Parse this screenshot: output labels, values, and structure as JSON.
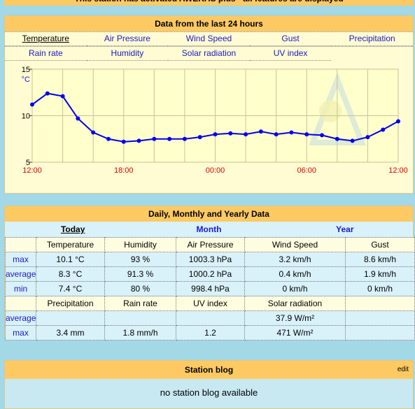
{
  "banner": "This station has activated AWEKAS plus - all features are displayed",
  "chart_panel": {
    "title": "Data from the last 24 hours",
    "tabs": [
      [
        "Temperature",
        "Air Pressure",
        "Wind Speed",
        "Gust",
        "Precipitation"
      ],
      [
        "Rain rate",
        "Humidity",
        "Solar radiation",
        "UV index"
      ]
    ]
  },
  "chart_data": {
    "type": "line",
    "y_unit": "°C",
    "color": "#0000ee",
    "grid": true,
    "categories": [
      "12:00",
      null,
      null,
      null,
      null,
      null,
      "18:00",
      null,
      null,
      null,
      null,
      null,
      "00:00",
      null,
      null,
      null,
      null,
      null,
      "06:00",
      null,
      null,
      null,
      null,
      null,
      "12:00"
    ],
    "values": [
      11.2,
      12.4,
      12.1,
      9.7,
      8.2,
      7.5,
      7.2,
      7.3,
      7.5,
      7.5,
      7.5,
      7.7,
      8.0,
      8.1,
      8.0,
      8.3,
      8.0,
      8.2,
      8.0,
      7.9,
      7.5,
      7.3,
      7.7,
      8.5,
      9.4
    ],
    "ylim": [
      5,
      15
    ],
    "yticks": [
      5,
      10,
      15
    ]
  },
  "summary": {
    "title": "Daily, Monthly and Yearly Data",
    "periods": [
      "Today",
      "Month",
      "Year"
    ],
    "table1": {
      "columns": [
        "Temperature",
        "Humidity",
        "Air Pressure",
        "Wind Speed",
        "Gust"
      ],
      "rows": [
        {
          "label": "max",
          "cells": [
            "10.1 °C",
            "93 %",
            "1003.3 hPa",
            "3.2 km/h",
            "8.6 km/h"
          ]
        },
        {
          "label": "average",
          "cells": [
            "8.3 °C",
            "91.3 %",
            "1000.2 hPa",
            "0.4 km/h",
            "1.9 km/h"
          ]
        },
        {
          "label": "min",
          "cells": [
            "7.4 °C",
            "80 %",
            "998.4 hPa",
            "0 km/h",
            "0 km/h"
          ]
        }
      ]
    },
    "table2": {
      "columns": [
        "Precipitation",
        "Rain rate",
        "UV index",
        "Solar radiation"
      ],
      "rows": [
        {
          "label": "average",
          "cells": [
            null,
            null,
            null,
            "37.9 W/m²"
          ]
        },
        {
          "label": "max",
          "cells": [
            "3.4 mm",
            "1.8 mm/h",
            "1.2",
            "471 W/m²"
          ]
        }
      ]
    }
  },
  "blog": {
    "title": "Station blog",
    "edit": "edit",
    "message": "no station blog available"
  }
}
